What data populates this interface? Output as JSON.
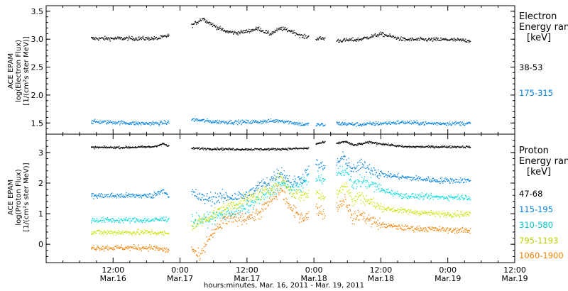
{
  "chart_data": [
    {
      "type": "scatter",
      "panel": "electron",
      "ylabel": [
        "ACE EPAM",
        "log(Electron Flux)",
        "[1/(cm²s ster MeV)]"
      ],
      "ylim": [
        1.3,
        3.6
      ],
      "yticks": [
        1.5,
        2.0,
        2.5,
        3.0,
        3.5
      ],
      "ytick_labels": [
        "1.5",
        "2.0",
        "2.5",
        "3.0",
        "3.5"
      ],
      "legend_title": [
        "Electron",
        "Energy ran",
        "[keV]"
      ],
      "series": [
        {
          "name": "38-53",
          "color": "#000000",
          "segments": [
            {
              "x": [
                8,
                12,
                16,
                20,
                22
              ],
              "y": [
                3.02,
                3.02,
                3.02,
                3.02,
                3.08
              ]
            },
            {
              "x": [
                26,
                28,
                30,
                32,
                34,
                36,
                38,
                40,
                42,
                44,
                46,
                47
              ],
              "y": [
                3.25,
                3.38,
                3.25,
                3.15,
                3.12,
                3.15,
                3.2,
                3.1,
                3.2,
                3.15,
                3.05,
                3.05
              ]
            },
            {
              "x": [
                48.3,
                50
              ],
              "y": [
                3.02,
                3.02
              ]
            },
            {
              "x": [
                52,
                56,
                60,
                62,
                64,
                68,
                72,
                76
              ],
              "y": [
                2.98,
                3.0,
                3.1,
                3.05,
                3.0,
                3.0,
                3.0,
                2.98
              ]
            }
          ]
        },
        {
          "name": "175-315",
          "color": "#0080e0",
          "segments": [
            {
              "x": [
                8,
                12,
                16,
                20,
                22
              ],
              "y": [
                1.53,
                1.52,
                1.5,
                1.5,
                1.52
              ]
            },
            {
              "x": [
                26,
                30,
                34,
                38,
                42,
                46,
                47
              ],
              "y": [
                1.57,
                1.53,
                1.52,
                1.53,
                1.55,
                1.48,
                1.48
              ]
            },
            {
              "x": [
                48.3,
                50
              ],
              "y": [
                1.48,
                1.47
              ]
            },
            {
              "x": [
                52,
                56,
                60,
                64,
                68,
                72,
                76
              ],
              "y": [
                1.5,
                1.48,
                1.5,
                1.52,
                1.5,
                1.5,
                1.5
              ]
            }
          ]
        }
      ]
    },
    {
      "type": "scatter",
      "panel": "proton",
      "ylabel": [
        "ACE EPAM",
        "log(Proton Flux)",
        "[1/(cm²s ster MeV)]"
      ],
      "ylim": [
        -0.6,
        3.6
      ],
      "yticks": [
        0,
        1,
        2,
        3
      ],
      "ytick_labels": [
        "0",
        "1",
        "2",
        "3"
      ],
      "legend_title": [
        "Proton",
        "Energy ran",
        "[keV]"
      ],
      "series": [
        {
          "name": "47-68",
          "color": "#000000",
          "segments": [
            {
              "x": [
                8,
                14,
                19,
                21,
                22
              ],
              "y": [
                3.18,
                3.18,
                3.2,
                3.3,
                3.2
              ]
            },
            {
              "x": [
                26,
                34,
                40,
                47
              ],
              "y": [
                3.15,
                3.12,
                3.12,
                3.15
              ]
            },
            {
              "x": [
                48.3,
                50
              ],
              "y": [
                3.3,
                3.35
              ]
            },
            {
              "x": [
                52,
                53.5,
                55,
                58,
                64,
                70,
                76
              ],
              "y": [
                3.3,
                3.38,
                3.25,
                3.35,
                3.2,
                3.2,
                3.2
              ]
            }
          ]
        },
        {
          "name": "115-195",
          "color": "#0080e0",
          "segments": [
            {
              "x": [
                8,
                14,
                19,
                21,
                22
              ],
              "y": [
                1.6,
                1.6,
                1.6,
                1.8,
                1.5
              ]
            },
            {
              "x": [
                26,
                28,
                32,
                36,
                38,
                40,
                42,
                44,
                46,
                47
              ],
              "y": [
                1.7,
                1.5,
                1.55,
                1.6,
                1.9,
                2.1,
                2.4,
                2.0,
                2.2,
                2.5
              ]
            },
            {
              "x": [
                48.3,
                50
              ],
              "y": [
                2.6,
                2.5
              ]
            },
            {
              "x": [
                52,
                53.5,
                55,
                56,
                58,
                60,
                64,
                70,
                76
              ],
              "y": [
                2.7,
                2.85,
                2.4,
                2.6,
                2.5,
                2.3,
                2.2,
                2.1,
                2.1
              ]
            }
          ]
        },
        {
          "name": "310-580",
          "color": "#00d8d8",
          "segments": [
            {
              "x": [
                8,
                14,
                19,
                22
              ],
              "y": [
                0.8,
                0.8,
                0.8,
                0.85
              ]
            },
            {
              "x": [
                26,
                28,
                32,
                36,
                38,
                40,
                42,
                44,
                46,
                47
              ],
              "y": [
                0.8,
                0.8,
                1.0,
                1.2,
                1.5,
                1.7,
                2.0,
                1.8,
                2.0,
                2.2
              ]
            },
            {
              "x": [
                48.3,
                50
              ],
              "y": [
                2.2,
                2.1
              ]
            },
            {
              "x": [
                52,
                53.5,
                55,
                56,
                58,
                60,
                64,
                70,
                76
              ],
              "y": [
                2.3,
                2.5,
                1.9,
                2.1,
                2.0,
                1.8,
                1.6,
                1.55,
                1.55
              ]
            }
          ]
        },
        {
          "name": "795-1193",
          "color": "#c8e000",
          "segments": [
            {
              "x": [
                8,
                14,
                19,
                22
              ],
              "y": [
                0.4,
                0.4,
                0.4,
                0.35
              ]
            },
            {
              "x": [
                26,
                28,
                32,
                36,
                38,
                40,
                42,
                44,
                46,
                47
              ],
              "y": [
                0.6,
                0.8,
                1.2,
                1.5,
                1.6,
                1.8,
                2.2,
                1.7,
                1.6,
                1.7
              ]
            },
            {
              "x": [
                48.3,
                50
              ],
              "y": [
                1.7,
                1.5
              ]
            },
            {
              "x": [
                52,
                53.5,
                55,
                56,
                58,
                60,
                64,
                70,
                76
              ],
              "y": [
                1.7,
                2.0,
                1.4,
                1.6,
                1.4,
                1.2,
                1.1,
                1.0,
                1.0
              ]
            }
          ]
        },
        {
          "name": "1060-1900",
          "color": "#f08000",
          "segments": [
            {
              "x": [
                8,
                14,
                19,
                22
              ],
              "y": [
                -0.1,
                -0.1,
                -0.1,
                -0.2
              ]
            },
            {
              "x": [
                26,
                27.5,
                29,
                32,
                36,
                38,
                40,
                42,
                44,
                46,
                47
              ],
              "y": [
                -0.1,
                -0.45,
                0.2,
                0.8,
                0.9,
                1.0,
                1.4,
                1.8,
                1.1,
                0.9,
                0.95
              ]
            },
            {
              "x": [
                48.3,
                50
              ],
              "y": [
                1.2,
                1.0
              ]
            },
            {
              "x": [
                52,
                53.5,
                55,
                56,
                58,
                60,
                64,
                70,
                76
              ],
              "y": [
                1.2,
                1.5,
                0.8,
                1.0,
                0.8,
                0.65,
                0.55,
                0.5,
                0.45
              ]
            }
          ]
        }
      ]
    }
  ],
  "x_axis": {
    "range_hours": [
      0,
      84
    ],
    "tick_hours": [
      12,
      24,
      36,
      48,
      60,
      72,
      84
    ],
    "tick_labels": [
      "12:00",
      "0:00",
      "12:00",
      "0:00",
      "12:00",
      "0:00",
      "12:00"
    ],
    "date_hours": [
      12,
      24,
      36,
      48,
      60,
      72,
      84
    ],
    "date_labels": [
      "Mar.16",
      "Mar.17",
      "Mar.17",
      "Mar.18",
      "Mar.18",
      "Mar.19",
      "Mar.19"
    ],
    "xlabel": "hours:minutes, Mar. 16, 2011 - Mar. 19, 2011"
  }
}
